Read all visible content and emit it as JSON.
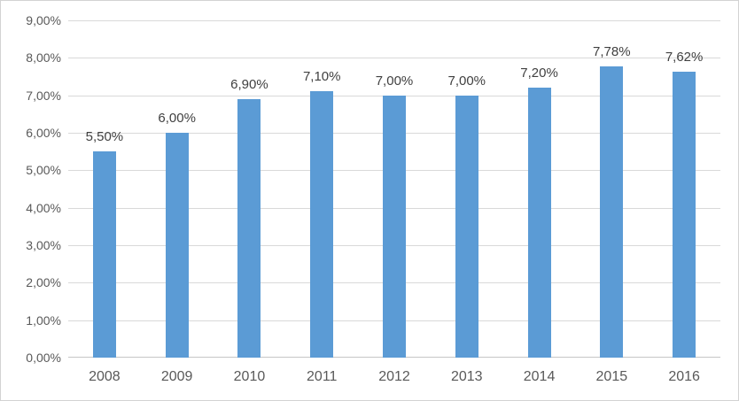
{
  "chart_data": {
    "type": "bar",
    "title": "",
    "xlabel": "",
    "ylabel": "",
    "categories": [
      "2008",
      "2009",
      "2010",
      "2011",
      "2012",
      "2013",
      "2014",
      "2015",
      "2016"
    ],
    "values": [
      5.5,
      6.0,
      6.9,
      7.1,
      7.0,
      7.0,
      7.2,
      7.78,
      7.62
    ],
    "value_labels": [
      "5,50%",
      "6,00%",
      "6,90%",
      "7,10%",
      "7,00%",
      "7,00%",
      "7,20%",
      "7,78%",
      "7,62%"
    ],
    "y_ticks": [
      "0,00%",
      "1,00%",
      "2,00%",
      "3,00%",
      "4,00%",
      "5,00%",
      "6,00%",
      "7,00%",
      "8,00%",
      "9,00%"
    ],
    "ylim": [
      0,
      9
    ],
    "grid": "horizontal",
    "legend": "none",
    "colors": {
      "bar": "#5B9BD5",
      "gridline": "#D9D9D9",
      "axis_line": "#C6C6C6",
      "tick_text": "#595959",
      "value_label_text": "#404040",
      "border": "#D3D3D3",
      "background": "#FFFFFF"
    }
  }
}
